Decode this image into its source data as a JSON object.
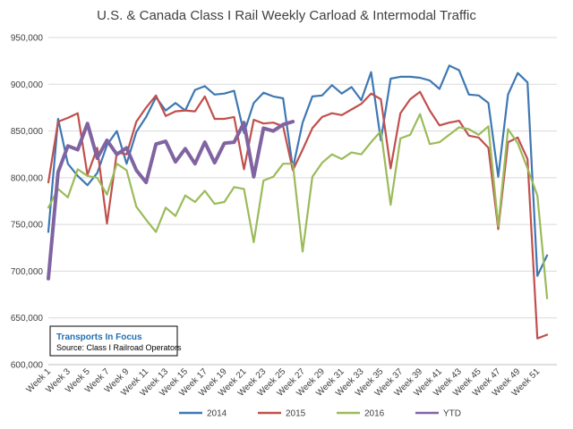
{
  "chart_data": {
    "type": "line",
    "title": "U.S. & Canada Class I Rail Weekly Carload & Intermodal Traffic",
    "xlabel": "",
    "ylabel": "",
    "ylim": [
      600000,
      950000
    ],
    "yticks": [
      600000,
      650000,
      700000,
      750000,
      800000,
      850000,
      900000,
      950000
    ],
    "ytick_labels": [
      "600,000",
      "650,000",
      "700,000",
      "750,000",
      "800,000",
      "850,000",
      "900,000",
      "950,000"
    ],
    "xtick_labels": [
      "Week 1",
      "Week 3",
      "Week 5",
      "Week 7",
      "Week 9",
      "Week 11",
      "Week 13",
      "Week 15",
      "Week 17",
      "Week 19",
      "Week 21",
      "Week 23",
      "Week 25",
      "Week 27",
      "Week 29",
      "Week 31",
      "Week 33",
      "Week 35",
      "Week 37",
      "Week 39",
      "Week 41",
      "Week 43",
      "Week 45",
      "Week 47",
      "Week 49",
      "Week 51"
    ],
    "grid": true,
    "legend_position": "bottom",
    "x": [
      1,
      2,
      3,
      4,
      5,
      6,
      7,
      8,
      9,
      10,
      11,
      12,
      13,
      14,
      15,
      16,
      17,
      18,
      19,
      20,
      21,
      22,
      23,
      24,
      25,
      26,
      27,
      28,
      29,
      30,
      31,
      32,
      33,
      34,
      35,
      36,
      37,
      38,
      39,
      40,
      41,
      42,
      43,
      44,
      45,
      46,
      47,
      48,
      49,
      50,
      51,
      52,
      53
    ],
    "series": [
      {
        "name": "2014",
        "color": "#3e78b3",
        "values": [
          742000,
          863000,
          815000,
          802000,
          792000,
          805000,
          835000,
          850000,
          815000,
          849000,
          865000,
          886000,
          872000,
          880000,
          872000,
          894000,
          898000,
          889000,
          890000,
          893000,
          848000,
          880000,
          891000,
          887000,
          885000,
          810000,
          859000,
          887000,
          888000,
          899000,
          890000,
          897000,
          883000,
          913000,
          840000,
          906000,
          908000,
          908000,
          907000,
          904000,
          895000,
          920000,
          915000,
          889000,
          888000,
          880000,
          801000,
          889000,
          912000,
          902000,
          695000,
          717000,
          null
        ]
      },
      {
        "name": "2015",
        "color": "#c0504d",
        "values": [
          795000,
          860000,
          864000,
          869000,
          803000,
          832000,
          751000,
          827000,
          825000,
          860000,
          875000,
          888000,
          866000,
          871000,
          872000,
          871000,
          887000,
          863000,
          863000,
          865000,
          809000,
          862000,
          858000,
          859000,
          855000,
          808000,
          830000,
          853000,
          865000,
          869000,
          867000,
          873000,
          879000,
          890000,
          884000,
          810000,
          869000,
          884000,
          892000,
          872000,
          856000,
          859000,
          861000,
          845000,
          843000,
          832000,
          745000,
          838000,
          843000,
          820000,
          628000,
          632000,
          null
        ]
      },
      {
        "name": "2016",
        "color": "#9bbb59",
        "values": [
          768000,
          788000,
          779000,
          809000,
          802000,
          800000,
          782000,
          815000,
          808000,
          769000,
          755000,
          742000,
          768000,
          759000,
          781000,
          774000,
          786000,
          772000,
          774000,
          790000,
          788000,
          731000,
          797000,
          801000,
          815000,
          815000,
          721000,
          801000,
          816000,
          825000,
          820000,
          827000,
          825000,
          838000,
          850000,
          771000,
          842000,
          846000,
          868000,
          836000,
          838000,
          846000,
          854000,
          852000,
          846000,
          855000,
          748000,
          852000,
          837000,
          810000,
          781000,
          671000,
          null
        ]
      },
      {
        "name": "YTD",
        "color": "#8064a2",
        "values": [
          692000,
          806000,
          834000,
          830000,
          858000,
          821000,
          840000,
          825000,
          832000,
          808000,
          795000,
          836000,
          839000,
          817000,
          831000,
          815000,
          838000,
          816000,
          837000,
          838000,
          859000,
          801000,
          853000,
          850000,
          857000,
          860000,
          null,
          null,
          null,
          null,
          null,
          null,
          null,
          null,
          null,
          null,
          null,
          null,
          null,
          null,
          null,
          null,
          null,
          null,
          null,
          null,
          null,
          null,
          null,
          null,
          null,
          null,
          null
        ]
      }
    ],
    "annotation": {
      "title": "Transports  In Focus",
      "source": "Source: Class I Railroad Operators"
    }
  }
}
